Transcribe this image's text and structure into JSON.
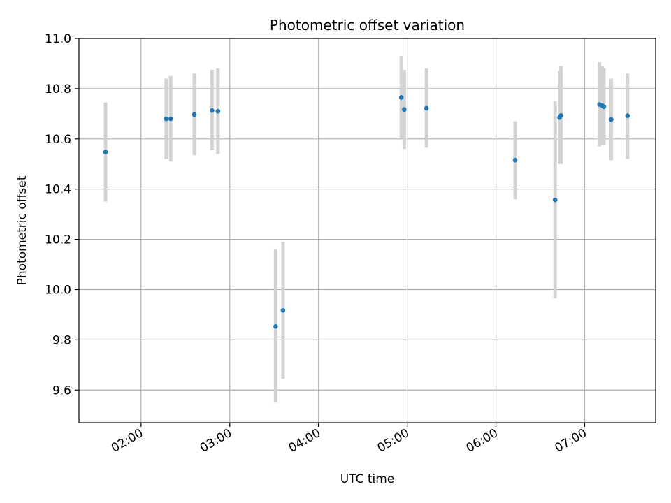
{
  "chart_data": {
    "type": "scatter",
    "title": "Photometric offset variation",
    "xlabel": "UTC time",
    "ylabel": "Photometric offset",
    "x_ticks": [
      "02:00",
      "03:00",
      "04:00",
      "05:00",
      "06:00",
      "07:00"
    ],
    "y_ticks": [
      "9.6",
      "9.8",
      "10.0",
      "10.2",
      "10.4",
      "10.6",
      "10.8",
      "11.0"
    ],
    "xlim": [
      "01:18",
      "07:48"
    ],
    "ylim": [
      9.47,
      11.0
    ],
    "grid": true,
    "point_color": "#1f77b4",
    "errorbar_color": "#d3d3d3",
    "series": [
      {
        "points": [
          {
            "x": "01:36",
            "y": 10.548,
            "low": 10.35,
            "high": 10.745
          },
          {
            "x": "02:17",
            "y": 10.68,
            "low": 10.52,
            "high": 10.84
          },
          {
            "x": "02:20",
            "y": 10.68,
            "low": 10.51,
            "high": 10.85
          },
          {
            "x": "02:36",
            "y": 10.697,
            "low": 10.535,
            "high": 10.86
          },
          {
            "x": "02:48",
            "y": 10.713,
            "low": 10.555,
            "high": 10.875
          },
          {
            "x": "02:52",
            "y": 10.71,
            "low": 10.54,
            "high": 10.88
          },
          {
            "x": "03:31",
            "y": 9.853,
            "low": 9.55,
            "high": 10.16
          },
          {
            "x": "03:36",
            "y": 9.917,
            "low": 9.645,
            "high": 10.19
          },
          {
            "x": "04:56",
            "y": 10.765,
            "low": 10.6,
            "high": 10.93
          },
          {
            "x": "04:58",
            "y": 10.717,
            "low": 10.56,
            "high": 10.875
          },
          {
            "x": "05:13",
            "y": 10.722,
            "low": 10.565,
            "high": 10.88
          },
          {
            "x": "06:13",
            "y": 10.515,
            "low": 10.36,
            "high": 10.67
          },
          {
            "x": "06:40",
            "y": 10.357,
            "low": 9.965,
            "high": 10.75
          },
          {
            "x": "06:43",
            "y": 10.685,
            "low": 10.5,
            "high": 10.87
          },
          {
            "x": "06:44",
            "y": 10.693,
            "low": 10.5,
            "high": 10.89
          },
          {
            "x": "07:10",
            "y": 10.737,
            "low": 10.57,
            "high": 10.905
          },
          {
            "x": "07:12",
            "y": 10.732,
            "low": 10.575,
            "high": 10.89
          },
          {
            "x": "07:13",
            "y": 10.728,
            "low": 10.575,
            "high": 10.88
          },
          {
            "x": "07:18",
            "y": 10.677,
            "low": 10.515,
            "high": 10.84
          },
          {
            "x": "07:29",
            "y": 10.692,
            "low": 10.52,
            "high": 10.86
          }
        ]
      }
    ]
  }
}
